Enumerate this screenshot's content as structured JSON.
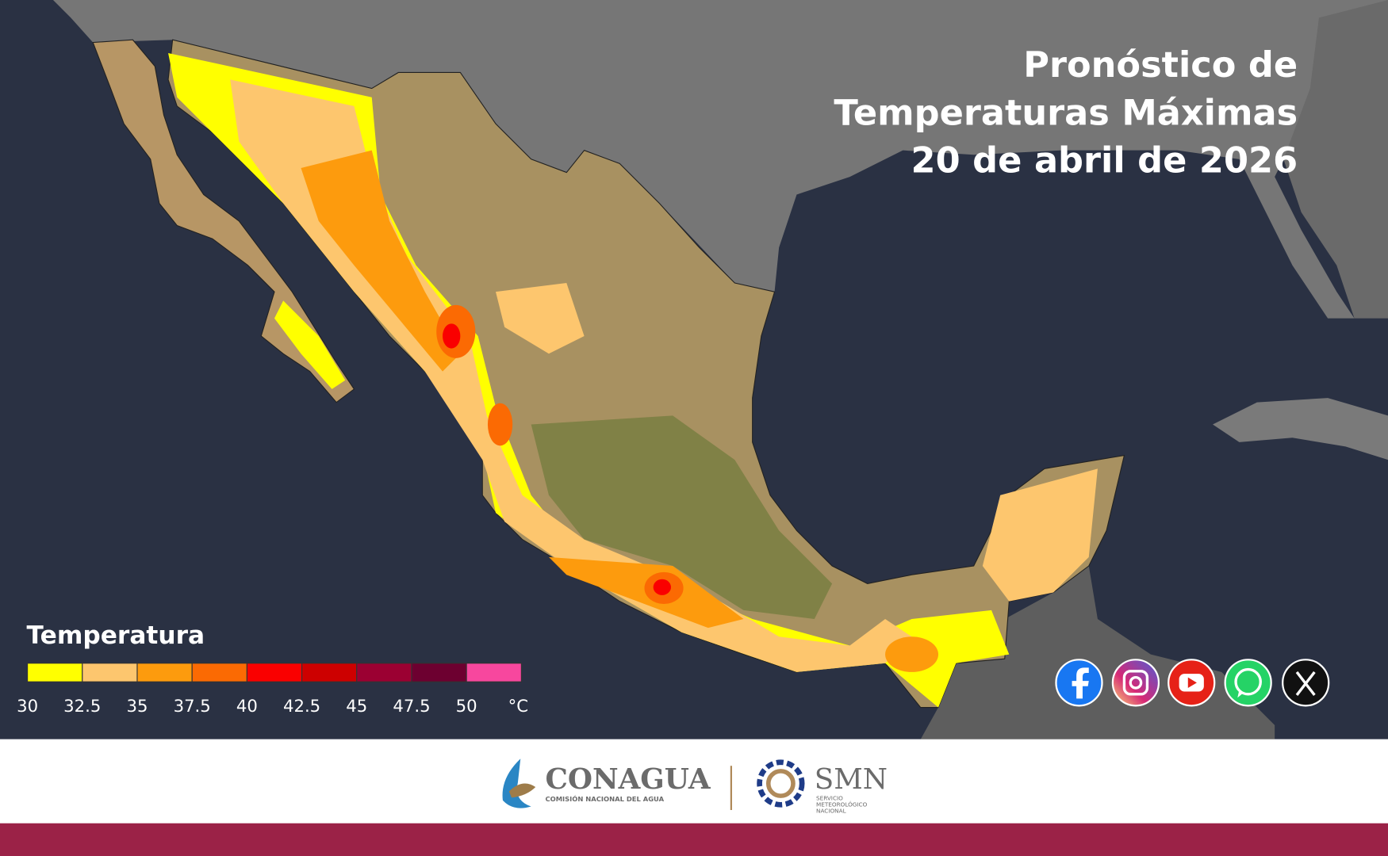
{
  "header": {
    "title_lines": [
      "Pronóstico de",
      "Temperaturas Máximas",
      "20 de abril de 2026"
    ]
  },
  "legend": {
    "title": "Temperatura",
    "ticks": [
      30,
      32.5,
      35,
      37.5,
      40,
      42.5,
      45,
      47.5,
      50
    ],
    "unit": "°C",
    "colors": [
      "#ffff00",
      "#fdc66e",
      "#fd9b0d",
      "#fb6a03",
      "#fa0000",
      "#cd0000",
      "#9b0032",
      "#6d0030",
      "#f7479e"
    ]
  },
  "footer": {
    "conagua": "CONAGUA",
    "conagua_sub": "COMISIÓN NACIONAL DEL AGUA",
    "smn": "SMN",
    "smn_sub": [
      "SERVICIO",
      "METEOROLÓGICO",
      "NACIONAL"
    ]
  }
}
